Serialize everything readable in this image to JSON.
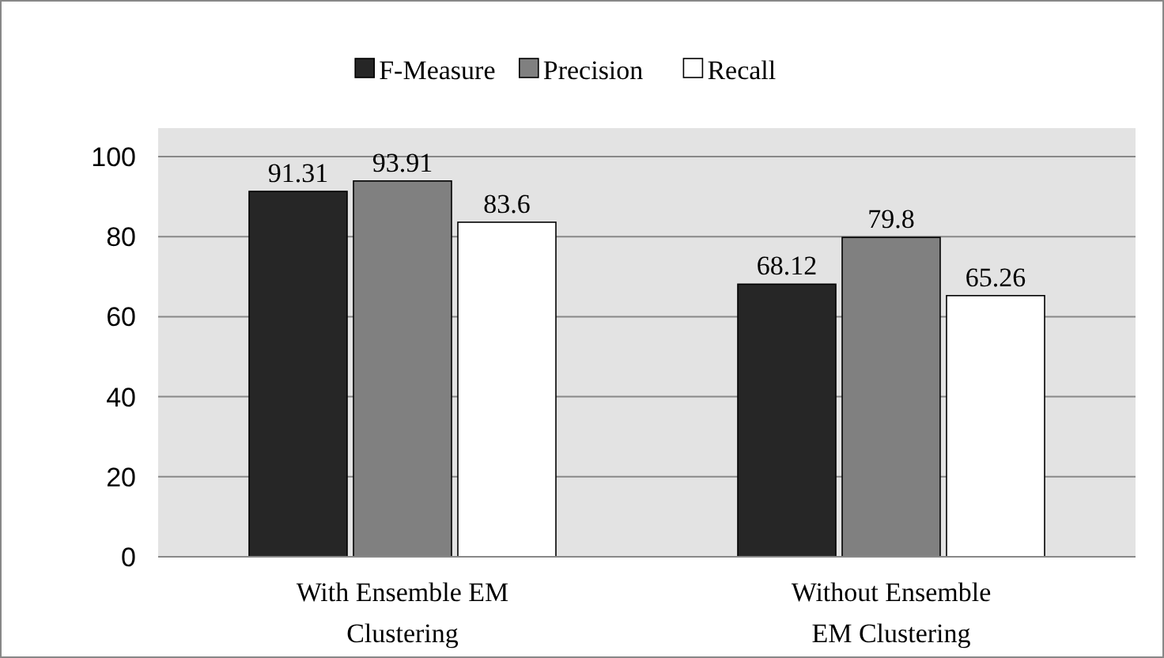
{
  "chart_data": {
    "type": "bar",
    "categories": [
      "With Ensemble EM Clustering",
      "Without Ensemble EM Clustering"
    ],
    "series": [
      {
        "name": "F-Measure",
        "color": "#262626",
        "values": [
          91.31,
          68.12
        ]
      },
      {
        "name": "Precision",
        "color": "#808080",
        "values": [
          93.91,
          79.8
        ]
      },
      {
        "name": "Recall",
        "color": "#ffffff",
        "values": [
          83.6,
          65.26
        ]
      }
    ],
    "ylim": [
      0,
      100
    ],
    "yticks": [
      0,
      20,
      40,
      60,
      80,
      100
    ],
    "grid": "y",
    "legend": "top",
    "data_labels": true
  }
}
